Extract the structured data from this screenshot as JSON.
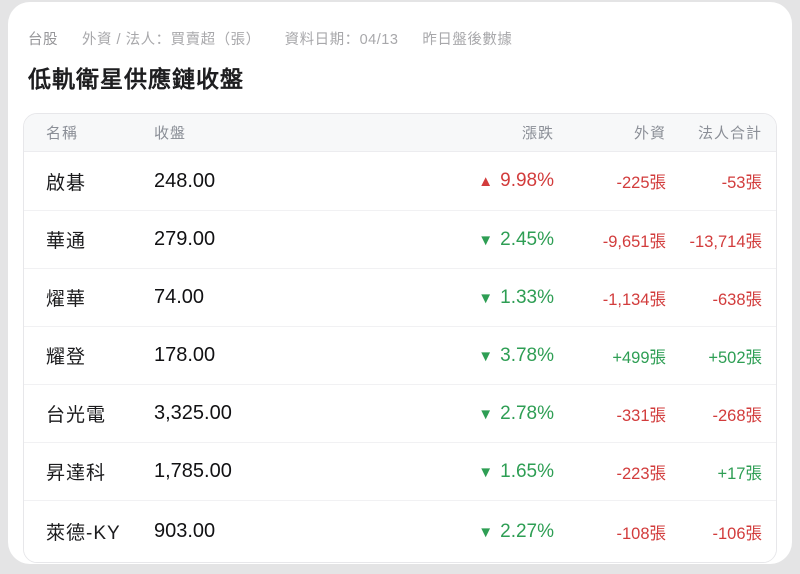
{
  "breadcrumb": {
    "market": "台股",
    "metric": "外資 / 法人：買賣超（張）",
    "date_label": "資料日期：04/13",
    "note": "昨日盤後數據"
  },
  "title": "低軌衛星供應鏈收盤",
  "colors": {
    "up": "#d23c3c",
    "down": "#2e9e54",
    "positive": "#2e9e54",
    "negative": "#d23c3c"
  },
  "table": {
    "headers": [
      "名稱",
      "收盤",
      "漲跌",
      "外資",
      "法人合計"
    ],
    "rows": [
      {
        "name": "啟碁",
        "close": "248.00",
        "direction": "up",
        "arrow": "▲",
        "change": "9.98%",
        "foreign": "-225張",
        "foreign_sign": "negative",
        "total": "-53張",
        "total_sign": "negative"
      },
      {
        "name": "華通",
        "close": "279.00",
        "direction": "down",
        "arrow": "▼",
        "change": "2.45%",
        "foreign": "-9,651張",
        "foreign_sign": "negative",
        "total": "-13,714張",
        "total_sign": "negative"
      },
      {
        "name": "燿華",
        "close": "74.00",
        "direction": "down",
        "arrow": "▼",
        "change": "1.33%",
        "foreign": "-1,134張",
        "foreign_sign": "negative",
        "total": "-638張",
        "total_sign": "negative"
      },
      {
        "name": "耀登",
        "close": "178.00",
        "direction": "down",
        "arrow": "▼",
        "change": "3.78%",
        "foreign": "+499張",
        "foreign_sign": "positive",
        "total": "+502張",
        "total_sign": "positive"
      },
      {
        "name": "台光電",
        "close": "3,325.00",
        "direction": "down",
        "arrow": "▼",
        "change": "2.78%",
        "foreign": "-331張",
        "foreign_sign": "negative",
        "total": "-268張",
        "total_sign": "negative"
      },
      {
        "name": "昇達科",
        "close": "1,785.00",
        "direction": "down",
        "arrow": "▼",
        "change": "1.65%",
        "foreign": "-223張",
        "foreign_sign": "negative",
        "total": "+17張",
        "total_sign": "positive"
      },
      {
        "name": "萊德-KY",
        "close": "903.00",
        "direction": "down",
        "arrow": "▼",
        "change": "2.27%",
        "foreign": "-108張",
        "foreign_sign": "negative",
        "total": "-106張",
        "total_sign": "negative"
      }
    ]
  }
}
